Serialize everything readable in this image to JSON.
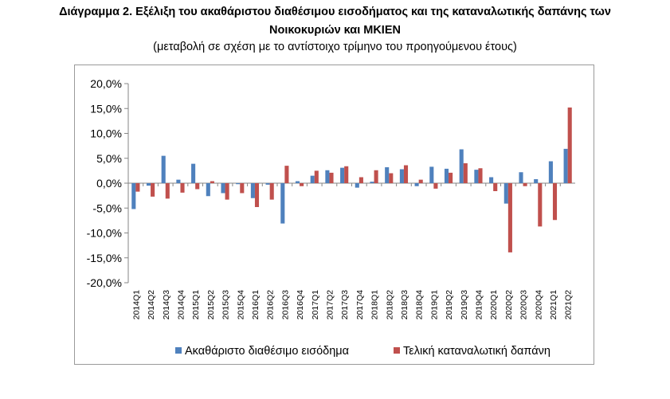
{
  "chart_data": {
    "type": "bar",
    "title": "Διάγραμμα 2. Εξέλιξη του ακαθάριστου διαθέσιμου εισοδήματος και της καταναλωτικής δαπάνης των",
    "title_line2": "Νοικοκυριών και ΜΚΙΕΝ",
    "subtitle": "(μεταβολή σε σχέση με το αντίστοιχο τρίμηνο του προηγούμενου έτους)",
    "xlabel": "",
    "ylabel": "",
    "ylim": [
      -20,
      20
    ],
    "y_ticks": [
      20,
      15,
      10,
      5,
      0,
      -5,
      -10,
      -15,
      -20
    ],
    "y_tick_labels": [
      "20,0%",
      "15,0%",
      "10,0%",
      "5,0%",
      "0,0%",
      "-5,0%",
      "-10,0%",
      "-15,0%",
      "-20,0%"
    ],
    "grid": false,
    "legend_position": "bottom",
    "categories": [
      "2014Q1",
      "2014Q2",
      "2014Q3",
      "2014Q4",
      "2015Q1",
      "2015Q2",
      "2015Q3",
      "2015Q4",
      "2016Q1",
      "2016Q2",
      "2016Q3",
      "2016Q4",
      "2017Q1",
      "2017Q2",
      "2017Q3",
      "2017Q4",
      "2018Q1",
      "2018Q2",
      "2018Q3",
      "2018Q4",
      "2019Q1",
      "2019Q2",
      "2019Q3",
      "2019Q4",
      "2020Q1",
      "2020Q2",
      "2020Q3",
      "2020Q4",
      "2021Q1",
      "2021Q2"
    ],
    "series": [
      {
        "name": "Ακαθάριστο διαθέσιμο εισόδημα",
        "color": "#4f81bd",
        "values": [
          -5.2,
          -0.5,
          5.5,
          0.7,
          3.9,
          -2.6,
          -2.0,
          -0.2,
          -3.0,
          -0.3,
          -8.1,
          0.4,
          1.5,
          2.6,
          3.1,
          -0.9,
          0.3,
          3.2,
          2.8,
          -0.6,
          3.3,
          2.9,
          6.8,
          2.7,
          1.2,
          -4.1,
          2.2,
          0.8,
          4.4,
          6.9
        ]
      },
      {
        "name": "Τελική καταναλωτική δαπάνη",
        "color": "#c0504d",
        "values": [
          -1.7,
          -2.7,
          -3.1,
          -1.9,
          -1.2,
          0.4,
          -3.3,
          -2.0,
          -4.8,
          -3.3,
          3.5,
          -0.6,
          2.5,
          2.1,
          3.4,
          1.2,
          2.6,
          2.0,
          3.6,
          0.7,
          -1.1,
          2.1,
          4.0,
          3.0,
          -1.6,
          -13.9,
          -0.6,
          -8.7,
          -7.4,
          15.2
        ]
      }
    ]
  }
}
